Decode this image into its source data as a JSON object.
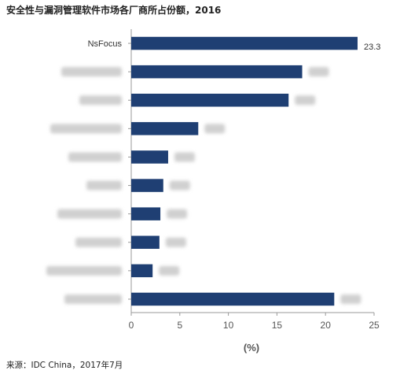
{
  "chart_data": {
    "type": "bar",
    "orientation": "horizontal",
    "title": "安全性与漏洞管理软件市场各厂商所占份额，2016",
    "source": "来源：IDC China，2017年7月",
    "xlabel": "(%)",
    "xlim": [
      0,
      25
    ],
    "x_ticks": [
      "0",
      "5",
      "10",
      "15",
      "20",
      "25"
    ],
    "grid": false,
    "bar_color": "#1f3f73",
    "categories": [
      "NsFocus",
      "",
      "",
      "",
      "",
      "",
      "",
      "",
      "",
      ""
    ],
    "values": [
      23.3,
      17.6,
      16.2,
      6.9,
      3.8,
      3.3,
      3.0,
      2.9,
      2.2,
      20.9
    ],
    "value_labels": [
      "23.3",
      "",
      "",
      "",
      "",
      "",
      "",
      "",
      "",
      ""
    ],
    "redacted": [
      false,
      true,
      true,
      true,
      true,
      true,
      true,
      true,
      true,
      true
    ]
  }
}
